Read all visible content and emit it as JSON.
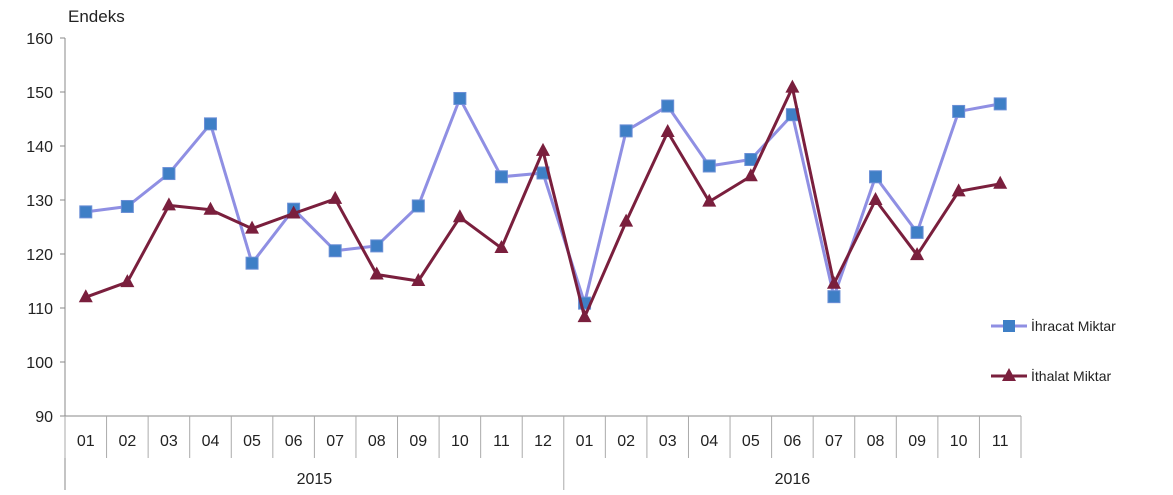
{
  "chart_data": {
    "type": "line",
    "ylabel": "Endeks",
    "ylim": [
      90,
      160
    ],
    "yticks": [
      90,
      100,
      110,
      120,
      130,
      140,
      150,
      160
    ],
    "grid": false,
    "legend_position": "right",
    "categories": [
      "01",
      "02",
      "03",
      "04",
      "05",
      "06",
      "07",
      "08",
      "09",
      "10",
      "11",
      "12",
      "01",
      "02",
      "03",
      "04",
      "05",
      "06",
      "07",
      "08",
      "09",
      "10",
      "11"
    ],
    "year_groups": [
      {
        "label": "2015",
        "count": 12
      },
      {
        "label": "2016",
        "count": 11
      }
    ],
    "series": [
      {
        "name": "İhracat Miktar",
        "color": "#8f8fe3",
        "marker": "square",
        "values": [
          127.8,
          128.8,
          134.9,
          144.1,
          118.3,
          128.3,
          120.6,
          121.5,
          128.9,
          148.8,
          134.3,
          135.0,
          110.9,
          142.8,
          147.4,
          136.3,
          137.5,
          145.8,
          112.1,
          134.3,
          124.0,
          146.4,
          147.8
        ]
      },
      {
        "name": "İthalat Miktar",
        "color": "#7a1f3d",
        "marker": "triangle",
        "values": [
          112.0,
          114.8,
          129.0,
          128.2,
          124.7,
          127.5,
          130.2,
          116.2,
          115.0,
          126.8,
          121.1,
          139.1,
          108.3,
          126.0,
          142.6,
          129.7,
          134.4,
          150.8,
          114.5,
          130.0,
          119.8,
          131.6,
          133.0
        ]
      }
    ]
  }
}
